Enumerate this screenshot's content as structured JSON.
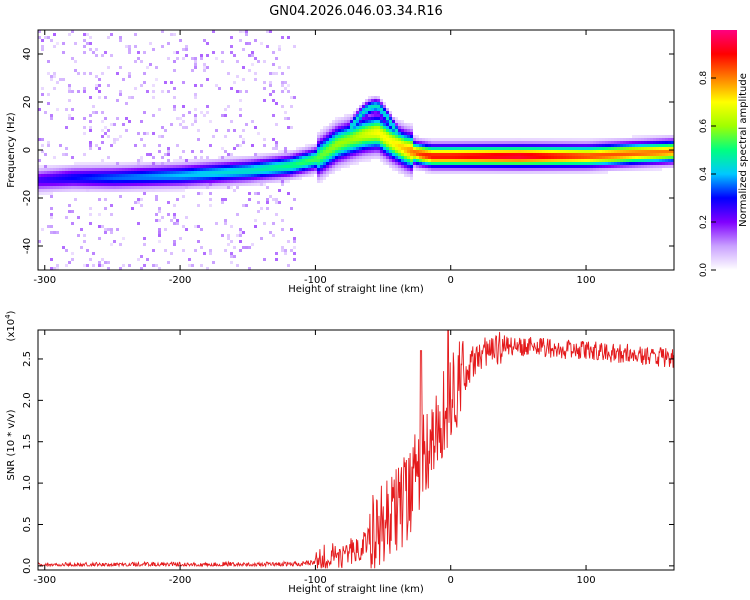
{
  "title": "GN04.2026.046.03.34.R16",
  "chart_data": [
    {
      "type": "heatmap",
      "xlabel": "Height of straight line (km)",
      "ylabel": "Frequency (Hz)",
      "xlim": [
        -305,
        165
      ],
      "ylim": [
        -50,
        50
      ],
      "x_ticks": [
        -300,
        -200,
        -100,
        0,
        100
      ],
      "y_ticks": [
        -40,
        -20,
        0,
        20,
        40
      ],
      "colorbar": {
        "label": "Normalized spectral amplitude",
        "range": [
          0,
          1
        ],
        "ticks": [
          "0.0",
          "0.2",
          "0.4",
          "0.6",
          "0.8"
        ],
        "colors": [
          "#ffffff",
          "#c9a0ff",
          "#8000ff",
          "#0000ff",
          "#00c8ff",
          "#00ff80",
          "#a0ff00",
          "#ffff00",
          "#ff8000",
          "#ff0000",
          "#ff0080"
        ]
      },
      "ridge": {
        "x": [
          -305,
          -280,
          -250,
          -200,
          -150,
          -120,
          -100,
          -85,
          -75,
          -65,
          -55,
          -45,
          -35,
          -25,
          -15,
          0,
          50,
          100,
          165
        ],
        "y": [
          -12,
          -11,
          -11,
          -10,
          -8,
          -6,
          -3,
          3,
          5,
          7,
          8,
          4,
          1,
          -1,
          -2,
          -2,
          -2,
          -2,
          0
        ],
        "peak_amplitude": [
          0.25,
          0.3,
          0.35,
          0.4,
          0.45,
          0.5,
          0.55,
          0.6,
          0.6,
          0.65,
          0.7,
          0.7,
          0.75,
          0.85,
          0.9,
          0.9,
          0.95,
          0.85,
          0.8
        ]
      }
    },
    {
      "type": "line",
      "xlabel": "Height of straight line (km)",
      "ylabel": "SNR (10 * v/v)",
      "y_multiplier": "(x10",
      "y_multiplier_exp": "4",
      "y_multiplier_close": ")",
      "xlim": [
        -305,
        165
      ],
      "ylim": [
        -0.05,
        2.85
      ],
      "x_ticks": [
        -300,
        -200,
        -100,
        0,
        100
      ],
      "y_ticks": [
        "0.0",
        "0.5",
        "1.0",
        "1.5",
        "2.0",
        "2.5"
      ],
      "series": [
        {
          "color": "#e41a1c",
          "envelope_x": [
            -305,
            -110,
            -100,
            -70,
            -50,
            -30,
            -20,
            -10,
            0,
            10,
            20,
            40,
            60,
            100,
            140,
            165
          ],
          "envelope_y": [
            0.01,
            0.02,
            0.05,
            0.2,
            0.45,
            0.9,
            1.3,
            1.7,
            2.0,
            2.3,
            2.55,
            2.65,
            2.65,
            2.6,
            2.55,
            2.5
          ],
          "spike_x": [
            -22,
            -2
          ],
          "spike_y": [
            2.6,
            2.85
          ]
        }
      ]
    }
  ]
}
